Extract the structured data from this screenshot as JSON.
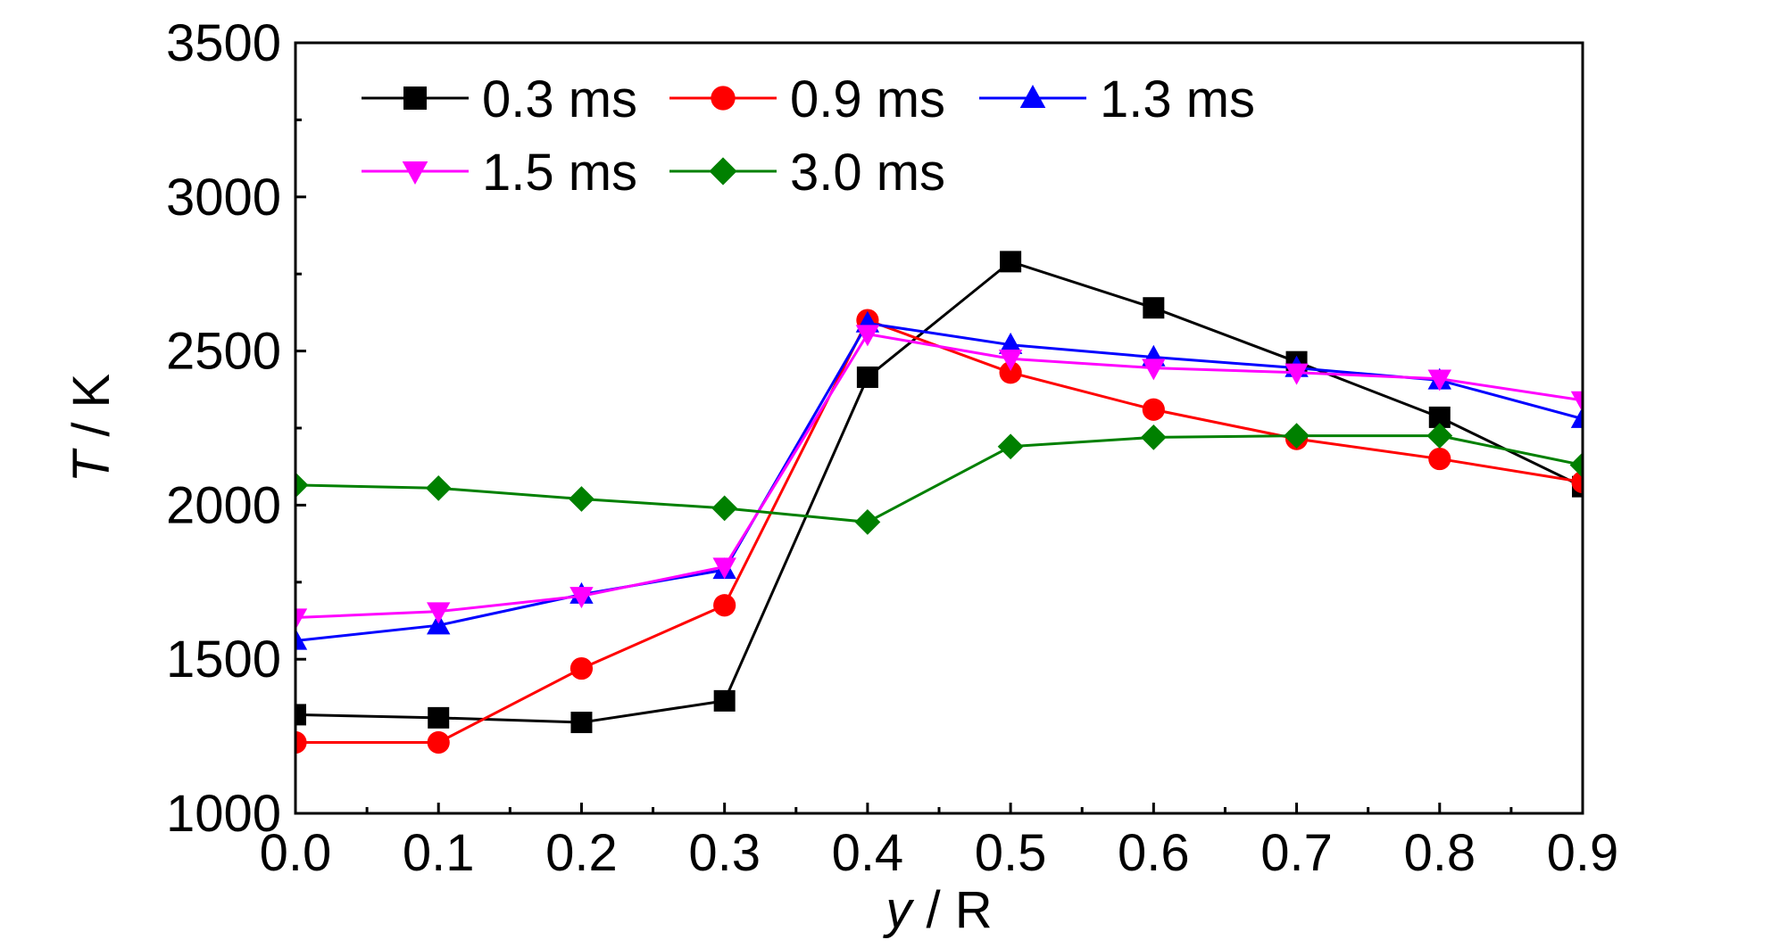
{
  "chart_data": {
    "type": "line",
    "xlabel_var": "y",
    "xlabel_rest": " / R",
    "ylabel_var": "T",
    "ylabel_rest": " / K",
    "xlim": [
      0.0,
      0.9
    ],
    "ylim": [
      1000,
      3500
    ],
    "xticks": [
      0.0,
      0.1,
      0.2,
      0.3,
      0.4,
      0.5,
      0.6,
      0.7,
      0.8,
      0.9
    ],
    "xtick_labels": [
      "0.0",
      "0.1",
      "0.2",
      "0.3",
      "0.4",
      "0.5",
      "0.6",
      "0.7",
      "0.8",
      "0.9"
    ],
    "yticks": [
      1000,
      1500,
      2000,
      2500,
      3000,
      3500
    ],
    "ytick_labels": [
      "1000",
      "1500",
      "2000",
      "2500",
      "3000",
      "3500"
    ],
    "x": [
      0.0,
      0.1,
      0.2,
      0.3,
      0.4,
      0.5,
      0.6,
      0.7,
      0.8,
      0.9
    ],
    "grid": false,
    "legend_position": "top-left, inside, 3 columns",
    "series": [
      {
        "name": "0.3 ms",
        "color": "#000000",
        "marker": "square",
        "values": [
          1320,
          1310,
          1295,
          1365,
          2415,
          2790,
          2640,
          2465,
          2285,
          2060
        ]
      },
      {
        "name": "0.9 ms",
        "color": "#ff0000",
        "marker": "circle",
        "values": [
          1230,
          1230,
          1470,
          1675,
          2600,
          2430,
          2310,
          2215,
          2150,
          2075
        ]
      },
      {
        "name": "1.3 ms",
        "color": "#0000ff",
        "marker": "triangle-up",
        "values": [
          1560,
          1610,
          1710,
          1790,
          2590,
          2520,
          2480,
          2445,
          2405,
          2280
        ]
      },
      {
        "name": "1.5 ms",
        "color": "#ff00ff",
        "marker": "triangle-down",
        "values": [
          1635,
          1655,
          1705,
          1800,
          2555,
          2475,
          2445,
          2430,
          2410,
          2340
        ]
      },
      {
        "name": "3.0 ms",
        "color": "#008000",
        "marker": "diamond",
        "values": [
          2065,
          2055,
          2020,
          1990,
          1945,
          2190,
          2220,
          2225,
          2225,
          2130
        ]
      }
    ]
  }
}
